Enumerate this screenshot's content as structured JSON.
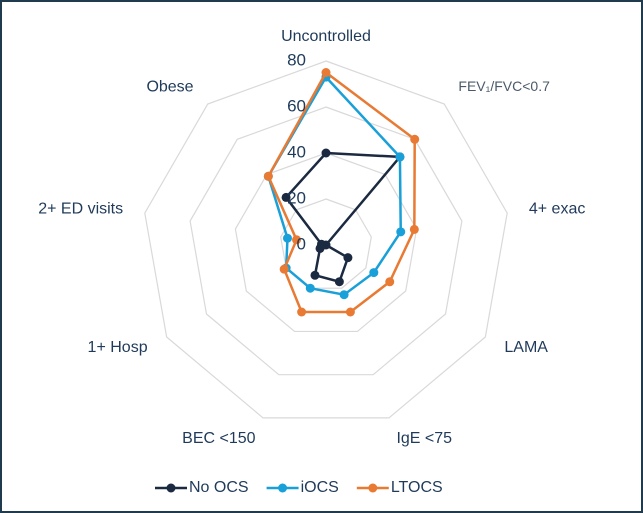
{
  "chart_data": {
    "type": "radar",
    "categories": [
      "Uncontrolled",
      "FEV₁/FVC<0.7",
      "4+ exac",
      "LAMA",
      "IgE <75",
      "BEC <150",
      "1+ Hosp",
      "2+ ED visits",
      "Obese"
    ],
    "rlim": [
      0,
      80
    ],
    "rticks": [
      0,
      20,
      40,
      60,
      80
    ],
    "grid": true,
    "legend": "bottom",
    "series": [
      {
        "name": "No OCS",
        "color": "#1b2a41",
        "values": [
          40,
          50,
          0,
          11,
          17,
          14,
          3,
          2,
          27
        ]
      },
      {
        "name": "iOCS",
        "color": "#1aa0d8",
        "values": [
          73,
          50,
          33,
          24,
          23,
          20,
          20,
          17,
          39
        ]
      },
      {
        "name": "LTOCS",
        "color": "#e87a33",
        "values": [
          75,
          60,
          39,
          32,
          31,
          31,
          21,
          13,
          39
        ]
      }
    ]
  }
}
